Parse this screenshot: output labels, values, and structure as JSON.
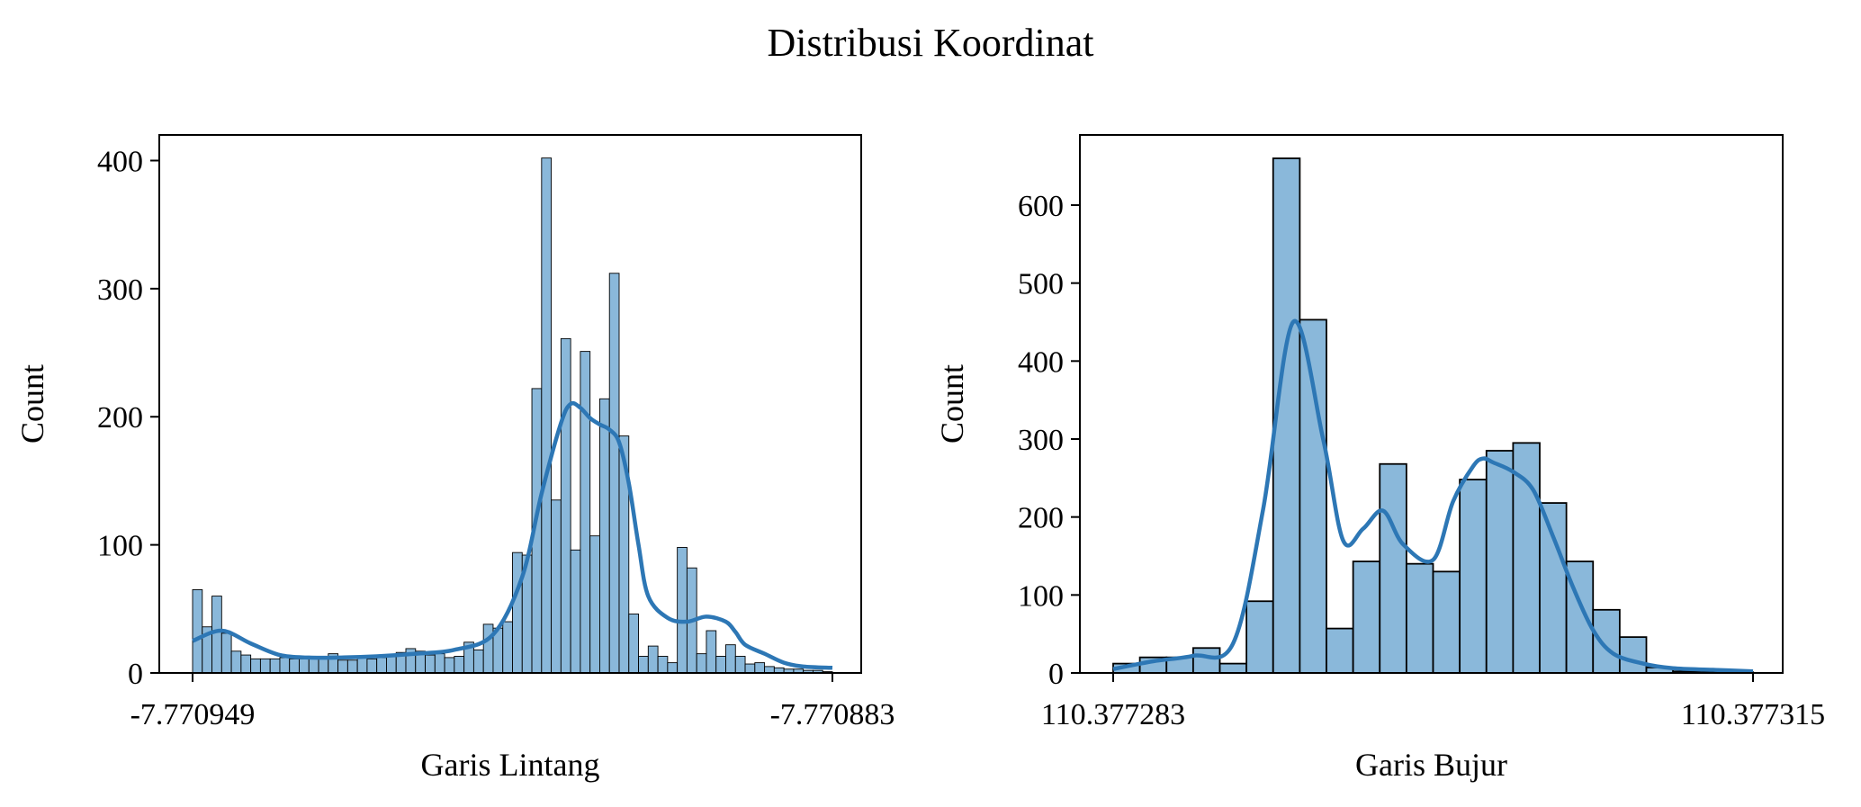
{
  "figure_title": "Distribusi Koordinat",
  "colors": {
    "bar_fill": "#8ab8da",
    "bar_edge": "#000000",
    "kde_line": "#2d77b5"
  },
  "chart_data": [
    {
      "type": "bar",
      "subtype": "histogram_with_kde",
      "xlabel": "Garis Lintang",
      "ylabel": "Count",
      "xticks": [
        "-7.770949",
        "-7.770883"
      ],
      "x_range": [
        -7.770949,
        -7.770883
      ],
      "yticks": [
        0,
        100,
        200,
        300,
        400
      ],
      "ylim": [
        0,
        420
      ],
      "grid": false,
      "bins": 66,
      "counts": [
        65,
        36,
        60,
        31,
        17,
        14,
        11,
        11,
        11,
        12,
        11,
        11,
        11,
        13,
        15,
        10,
        10,
        12,
        11,
        12,
        13,
        16,
        19,
        17,
        14,
        15,
        12,
        13,
        24,
        18,
        38,
        35,
        40,
        94,
        92,
        222,
        402,
        135,
        261,
        96,
        251,
        107,
        214,
        312,
        185,
        46,
        13,
        21,
        13,
        8,
        98,
        82,
        15,
        33,
        13,
        22,
        13,
        7,
        8,
        5,
        4,
        3,
        3,
        2,
        2,
        1
      ],
      "kde_x": [
        -7.770949,
        -7.770946,
        -7.770943,
        -7.77094,
        -7.770937,
        -7.770934,
        -7.77093,
        -7.770926,
        -7.770922,
        -7.770918,
        -7.770915,
        -7.770913,
        -7.770911,
        -7.77091,
        -7.770909,
        -7.770908,
        -7.770907,
        -7.770906,
        -7.770905,
        -7.770904,
        -7.770903,
        -7.770902,
        -7.7709,
        -7.770898,
        -7.770896,
        -7.770894,
        -7.770893,
        -7.770892,
        -7.77089,
        -7.770888,
        -7.770886,
        -7.770883
      ],
      "kde_y": [
        25,
        33,
        23,
        14,
        12,
        12,
        13,
        15,
        18,
        30,
        75,
        140,
        195,
        210,
        207,
        199,
        194,
        190,
        180,
        148,
        100,
        60,
        43,
        40,
        44,
        40,
        32,
        22,
        15,
        8,
        5,
        4
      ]
    },
    {
      "type": "bar",
      "subtype": "histogram_with_kde",
      "xlabel": "Garis Bujur",
      "ylabel": "Count",
      "xticks": [
        "110.377283",
        "110.377315"
      ],
      "x_range": [
        110.377283,
        110.377315
      ],
      "yticks": [
        0,
        100,
        200,
        300,
        400,
        500,
        600
      ],
      "ylim": [
        0,
        690
      ],
      "grid": false,
      "bins": 24,
      "counts": [
        12,
        20,
        20,
        32,
        12,
        92,
        660,
        453,
        57,
        143,
        268,
        140,
        130,
        248,
        285,
        295,
        218,
        143,
        81,
        46,
        7,
        2,
        1,
        1
      ],
      "kde_x": [
        110.377283,
        110.377285,
        110.377287,
        110.377289,
        110.3772905,
        110.377292,
        110.3772935,
        110.3772945,
        110.3772955,
        110.3772965,
        110.3772975,
        110.377299,
        110.3773,
        110.377301,
        110.3773015,
        110.377302,
        110.377303,
        110.377304,
        110.377305,
        110.377306,
        110.377307,
        110.377308,
        110.3773095,
        110.377311,
        110.377313,
        110.377315
      ],
      "kde_y": [
        5,
        15,
        22,
        38,
        210,
        450,
        300,
        170,
        185,
        208,
        165,
        145,
        220,
        265,
        275,
        270,
        258,
        235,
        175,
        110,
        55,
        25,
        12,
        6,
        4,
        2
      ]
    }
  ]
}
